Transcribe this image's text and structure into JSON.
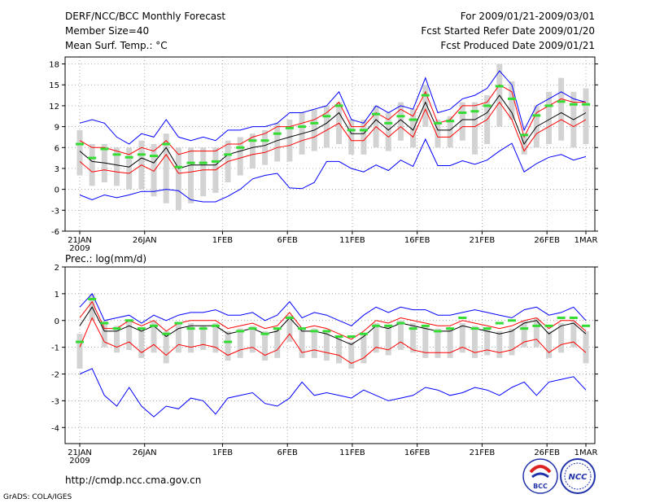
{
  "header": {
    "left": [
      "DERF/NCC/BCC Monthly Forecast",
      "Member Size=40",
      "Mean Surf. Temp.: °C"
    ],
    "right": [
      "For 2009/01/21-2009/03/01",
      "Fcst Started Refer Date 2009/01/20",
      "Fcst Produced Date 2009/01/21"
    ]
  },
  "footer": {
    "url": "http://cmdp.ncc.cma.gov.cn",
    "credit": "GrADS: COLA/IGES",
    "logo1_text": "BCC",
    "logo2_text": "NCC"
  },
  "colors": {
    "bar": "#d3d3d3",
    "mean": "#000000",
    "upper": "#0000ff",
    "lower": "#ff0000",
    "marker": "#33dd33",
    "grid": "#888888"
  },
  "x_ticks": [
    {
      "day": 0,
      "label": "21JAN",
      "sub": "2009"
    },
    {
      "day": 5,
      "label": "26JAN"
    },
    {
      "day": 11,
      "label": "1FEB"
    },
    {
      "day": 16,
      "label": "6FEB"
    },
    {
      "day": 21,
      "label": "11FEB"
    },
    {
      "day": 26,
      "label": "16FEB"
    },
    {
      "day": 31,
      "label": "21FEB"
    },
    {
      "day": 36,
      "label": "26FEB"
    },
    {
      "day": 39,
      "label": "1MAR"
    }
  ],
  "chart_data": [
    {
      "type": "line",
      "title": "Mean Surf. Temp.: °C",
      "ylabel": "",
      "ylim": [
        -6,
        19
      ],
      "yticks": [
        -6,
        -3,
        0,
        3,
        6,
        9,
        12,
        15,
        18
      ],
      "x": "days since 2009/01/21 (0..39)",
      "series": [
        {
          "name": "max",
          "color": "#0000ff",
          "values": [
            9.5,
            10,
            9.5,
            7.5,
            6.5,
            8,
            7.5,
            10,
            7.5,
            7,
            7.5,
            7,
            8.5,
            8.5,
            9,
            9,
            9.5,
            11,
            11,
            11.5,
            12,
            14,
            10,
            9.5,
            12,
            11,
            12,
            11.5,
            16,
            11,
            11.5,
            13,
            13.5,
            14.5,
            17,
            15,
            8.5,
            12,
            13,
            14,
            13,
            12.5
          ]
        },
        {
          "name": "upper",
          "color": "#ff0000",
          "values": [
            7,
            6,
            6,
            5.5,
            5,
            6,
            5.5,
            7,
            5,
            5.5,
            5.5,
            5.5,
            6.5,
            6.5,
            7.5,
            8,
            9,
            9,
            9.5,
            10,
            11,
            12.5,
            9,
            9,
            11,
            10,
            11.5,
            10.5,
            14,
            9.5,
            10,
            12,
            12,
            12.5,
            15,
            14,
            7.5,
            11,
            12,
            13,
            12.5,
            12.5
          ]
        },
        {
          "name": "mean",
          "color": "#000000",
          "values": [
            5.5,
            4,
            3.8,
            3.5,
            3.2,
            4.5,
            3.8,
            6,
            3,
            3.5,
            3.5,
            3.5,
            5,
            5.5,
            6,
            6.3,
            7,
            7.5,
            8,
            8.5,
            9.5,
            11,
            8,
            8,
            10,
            8.5,
            10,
            8.5,
            12.5,
            8.5,
            8.5,
            10,
            10,
            11,
            13.5,
            11,
            6.5,
            9,
            10,
            11,
            10,
            11
          ]
        },
        {
          "name": "lower",
          "color": "#ff0000",
          "values": [
            4,
            2.5,
            2.8,
            2.5,
            2.3,
            3.5,
            2.6,
            5,
            2.3,
            2.5,
            2.8,
            2.8,
            4,
            4.5,
            5,
            5.3,
            6,
            6.3,
            7,
            7.5,
            8.5,
            9.5,
            7,
            7,
            9,
            7.5,
            9,
            7.5,
            11.5,
            7.5,
            7.5,
            9,
            9,
            10,
            12.5,
            10,
            5.5,
            8,
            9,
            10,
            9,
            10
          ]
        },
        {
          "name": "min",
          "color": "#0000ff",
          "values": [
            -0.8,
            -1.5,
            -0.8,
            -1.2,
            -0.8,
            -0.3,
            -0.3,
            0,
            -0.2,
            -1.5,
            -1.8,
            -1.8,
            -1,
            0,
            1.5,
            2,
            2.3,
            0.2,
            0.1,
            1,
            4,
            4,
            3,
            2.5,
            3.5,
            2.7,
            4.2,
            3.3,
            7.2,
            3.4,
            3.4,
            4.1,
            3.6,
            4.2,
            5.5,
            6.6,
            2.5,
            3.7,
            4.6,
            5,
            4.2,
            4.7
          ]
        },
        {
          "name": "box_top",
          "color": "#d3d3d3",
          "values": [
            8.5,
            6.5,
            6.5,
            6,
            6,
            7,
            6.5,
            8,
            6,
            6,
            6,
            6,
            7,
            7.5,
            8,
            8.5,
            9.5,
            10,
            11,
            11.5,
            12,
            12.5,
            10,
            10,
            12,
            11,
            12.5,
            11.5,
            15,
            10,
            10.5,
            12.5,
            12.5,
            13.5,
            18,
            15.5,
            8,
            12,
            14,
            16,
            14,
            14.5
          ]
        },
        {
          "name": "box_bottom",
          "color": "#d3d3d3",
          "values": [
            2,
            0.5,
            1,
            0.5,
            0,
            0,
            -1,
            -2,
            -3,
            -2,
            -1,
            -0.5,
            1,
            2,
            3,
            3.5,
            4,
            4,
            5,
            5.5,
            6,
            6.5,
            5,
            5,
            6,
            5.5,
            7,
            6,
            9,
            6,
            6,
            7,
            5,
            6.5,
            9,
            10,
            5,
            6,
            6.5,
            7,
            6,
            6.5
          ]
        },
        {
          "name": "ensemble_marker",
          "color": "#33dd33",
          "values": [
            6.5,
            4.5,
            5.8,
            5,
            4.6,
            5,
            4.8,
            6.5,
            3.2,
            3.8,
            3.8,
            4,
            5,
            6,
            7,
            7,
            8,
            8.8,
            9,
            9.5,
            10.5,
            12,
            8.5,
            8.5,
            10.8,
            9.5,
            10.5,
            10,
            13.5,
            9.5,
            9.8,
            11,
            11.2,
            12,
            14.8,
            13,
            7.8,
            10.6,
            12,
            12.6,
            12.2,
            12.2
          ]
        }
      ]
    },
    {
      "type": "line",
      "title": "Prec.: log(mm/d)",
      "ylabel": "",
      "ylim": [
        -4.6,
        2
      ],
      "yticks": [
        -4,
        -3,
        -2,
        -1,
        0,
        1,
        2
      ],
      "x": "days since 2009/01/21 (0..39)",
      "series": [
        {
          "name": "max",
          "color": "#0000ff",
          "values": [
            0.5,
            1,
            0,
            0.1,
            0.2,
            -0.1,
            0.2,
            0,
            0.2,
            0.3,
            0.3,
            0.4,
            0.2,
            0.2,
            0.3,
            0,
            0.2,
            0.7,
            0.1,
            0.3,
            0.2,
            0,
            -0.2,
            0.2,
            0.5,
            0.3,
            0.5,
            0.4,
            0.4,
            0.2,
            0.2,
            0.3,
            0.4,
            0.3,
            0.2,
            0.1,
            0.4,
            0.5,
            0.2,
            0.3,
            0.5,
            0
          ]
        },
        {
          "name": "upper",
          "color": "#ff0000",
          "values": [
            0.1,
            0.7,
            -0.3,
            -0.3,
            0,
            -0.2,
            0,
            -0.4,
            -0.1,
            0,
            0,
            0,
            -0.3,
            -0.2,
            -0.1,
            -0.3,
            -0.2,
            0.3,
            -0.3,
            -0.2,
            -0.3,
            -0.5,
            -0.7,
            -0.4,
            0,
            -0.1,
            0.1,
            0,
            -0.1,
            -0.2,
            -0.2,
            0,
            -0.1,
            -0.2,
            -0.3,
            -0.2,
            0,
            0.1,
            -0.3,
            0,
            0,
            -0.4
          ]
        },
        {
          "name": "mean",
          "color": "#000000",
          "values": [
            -0.2,
            0.5,
            -0.4,
            -0.4,
            -0.2,
            -0.4,
            -0.2,
            -0.6,
            -0.3,
            -0.2,
            -0.2,
            -0.2,
            -0.5,
            -0.4,
            -0.3,
            -0.5,
            -0.4,
            0.1,
            -0.4,
            -0.4,
            -0.5,
            -0.7,
            -0.9,
            -0.6,
            -0.2,
            -0.3,
            -0.1,
            -0.2,
            -0.3,
            -0.4,
            -0.4,
            -0.2,
            -0.3,
            -0.4,
            -0.5,
            -0.4,
            -0.1,
            0,
            -0.5,
            -0.2,
            -0.1,
            -0.5
          ]
        },
        {
          "name": "lower",
          "color": "#ff0000",
          "values": [
            -1,
            0.1,
            -0.8,
            -1,
            -0.8,
            -1.2,
            -0.9,
            -1.3,
            -0.9,
            -1,
            -0.9,
            -1,
            -1.3,
            -1.1,
            -1,
            -1.3,
            -1.1,
            -0.5,
            -1.2,
            -1.1,
            -1.2,
            -1.3,
            -1.6,
            -1.4,
            -1,
            -1.1,
            -0.8,
            -1.1,
            -1.2,
            -1.2,
            -1.2,
            -1,
            -1.2,
            -1.1,
            -1.2,
            -1.1,
            -0.8,
            -0.7,
            -1.2,
            -0.9,
            -0.8,
            -1.2
          ]
        },
        {
          "name": "min",
          "color": "#0000ff",
          "values": [
            -2,
            -1.8,
            -2.8,
            -3.2,
            -2.5,
            -3.2,
            -3.6,
            -3.2,
            -3.3,
            -2.9,
            -3,
            -3.5,
            -2.9,
            -2.8,
            -2.7,
            -3.1,
            -3.2,
            -2.9,
            -2.3,
            -2.8,
            -2.7,
            -2.8,
            -2.9,
            -2.6,
            -2.8,
            -3,
            -2.9,
            -2.8,
            -2.5,
            -2.6,
            -2.8,
            -2.7,
            -2.5,
            -2.6,
            -2.8,
            -2.5,
            -2.3,
            -2.8,
            -2.3,
            -2.2,
            -2.1,
            -2.6
          ]
        },
        {
          "name": "box_top",
          "color": "#d3d3d3",
          "values": [
            -0.5,
            1,
            0,
            -0.2,
            0,
            -0.3,
            0,
            -0.4,
            -0.1,
            -0.1,
            -0.2,
            -0.1,
            -0.4,
            -0.3,
            -0.2,
            -0.4,
            -0.3,
            0.2,
            -0.3,
            -0.3,
            -0.4,
            -0.6,
            -0.8,
            -0.5,
            -0.1,
            -0.2,
            0,
            -0.1,
            -0.2,
            -0.3,
            -0.3,
            -0.1,
            -0.2,
            -0.3,
            -0.4,
            -0.3,
            0,
            0.1,
            -0.4,
            -0.1,
            0,
            -0.4
          ]
        },
        {
          "name": "box_bottom",
          "color": "#d3d3d3",
          "values": [
            -1.8,
            0,
            -1,
            -1.2,
            -1.1,
            -1.4,
            -1.2,
            -1.6,
            -1.2,
            -1.2,
            -1.1,
            -1.2,
            -1.5,
            -1.4,
            -1.2,
            -1.5,
            -1.4,
            -0.8,
            -1.4,
            -1.4,
            -1.5,
            -1.6,
            -1.8,
            -1.6,
            -1.2,
            -1.3,
            -1.1,
            -1.2,
            -1.4,
            -1.4,
            -1.4,
            -1.2,
            -1.4,
            -1.3,
            -1.4,
            -1.3,
            -1,
            -1,
            -1.4,
            -1.2,
            -1,
            -1.6
          ]
        },
        {
          "name": "ensemble_marker",
          "color": "#33dd33",
          "values": [
            -0.8,
            0.8,
            -0.1,
            -0.3,
            0,
            -0.3,
            -0.2,
            -0.5,
            -0.1,
            -0.3,
            -0.3,
            -0.2,
            -0.8,
            -0.4,
            -0.3,
            -0.5,
            -0.3,
            0.1,
            -0.3,
            -0.4,
            -0.4,
            -0.6,
            -0.6,
            -0.5,
            -0.2,
            -0.2,
            -0.1,
            -0.3,
            -0.2,
            -0.4,
            -0.3,
            0.1,
            -0.3,
            -0.3,
            -0.1,
            0,
            -0.3,
            -0.2,
            -0.2,
            0.1,
            0.1,
            -0.2
          ]
        }
      ]
    }
  ]
}
